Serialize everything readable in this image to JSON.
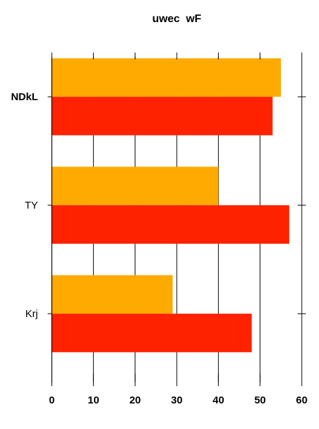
{
  "chart_data": {
    "type": "bar",
    "orientation": "horizontal",
    "title": "uwec  wF",
    "xlabel": "",
    "ylabel": "",
    "categories": [
      "NDkL",
      "TY",
      "Krj"
    ],
    "series": [
      {
        "values": [
          55,
          40,
          29
        ],
        "color": "#FFAA00"
      },
      {
        "values": [
          53,
          57,
          48
        ],
        "color": "#FF2200"
      }
    ],
    "xlim": [
      0,
      60
    ],
    "xticks": [
      0,
      10,
      20,
      30,
      40,
      50,
      60
    ],
    "grid": "vertical",
    "legend": "none"
  }
}
